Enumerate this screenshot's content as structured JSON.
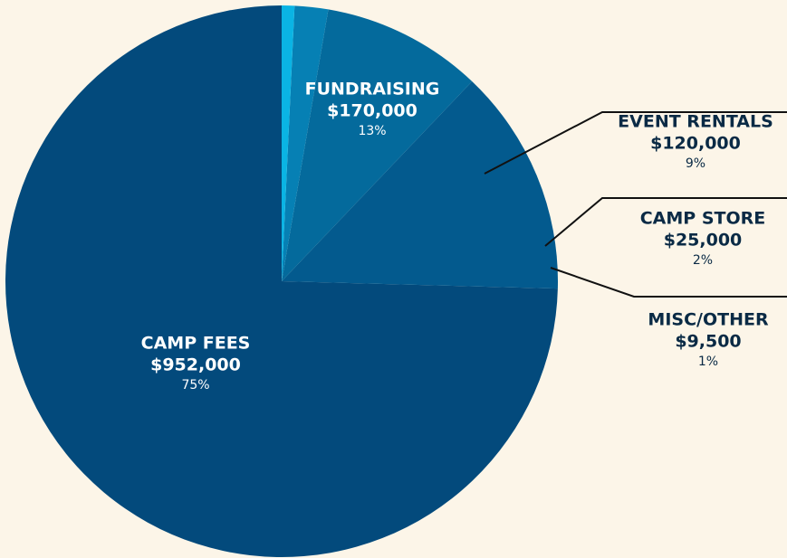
{
  "chart_data": {
    "type": "pie",
    "categories": [
      "CAMP FEES",
      "FUNDRAISING",
      "EVENT RENTALS",
      "CAMP STORE",
      "MISC/OTHER"
    ],
    "values": [
      952000,
      170000,
      120000,
      25000,
      9500
    ],
    "value_labels": [
      "$952,000",
      "$170,000",
      "$120,000",
      "$25,000",
      "$9,500"
    ],
    "percentages": [
      75,
      13,
      9,
      2,
      1
    ],
    "percentage_labels": [
      "75%",
      "13%",
      "9%",
      "2%",
      "1%"
    ],
    "colors": [
      "#034a7c",
      "#035a8e",
      "#046a9c",
      "#0680b4",
      "#0ab4e4"
    ]
  }
}
